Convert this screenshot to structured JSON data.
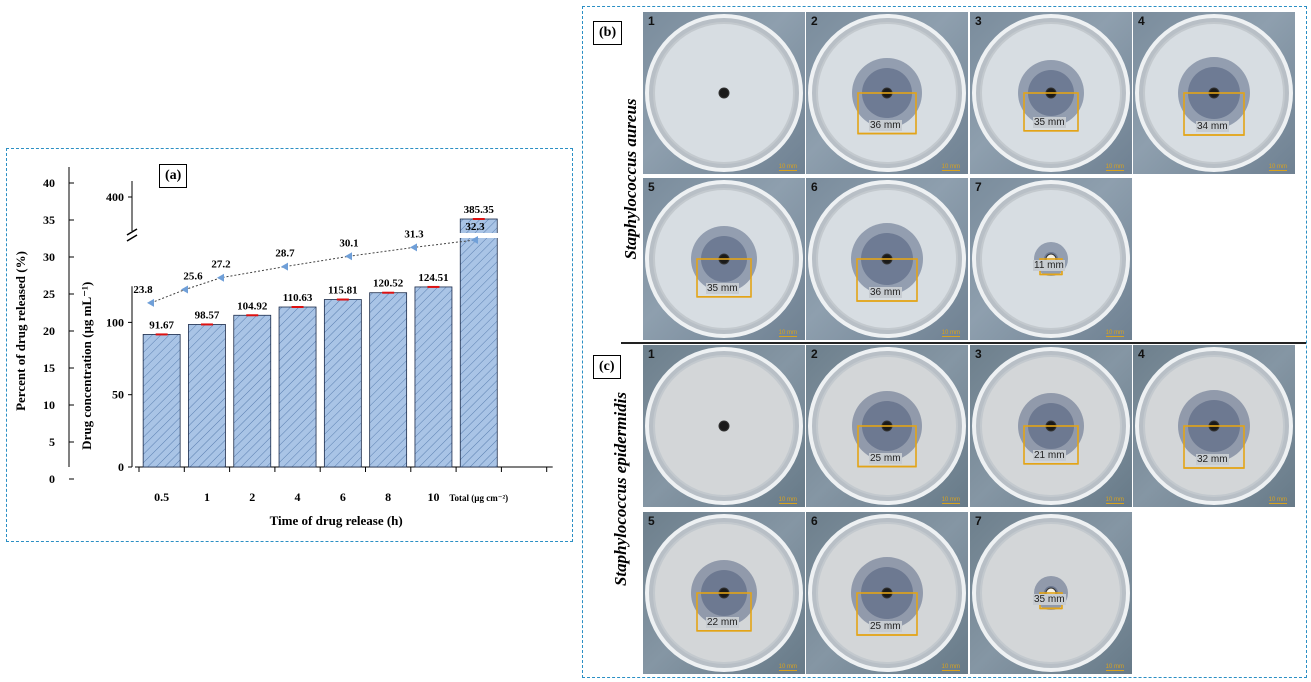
{
  "chart_data": {
    "type": "bar",
    "panel_label": "(a)",
    "categories": [
      "0.5",
      "1",
      "2",
      "4",
      "6",
      "8",
      "10",
      "Total (µg cm⁻²)"
    ],
    "bar_values": [
      91.67,
      98.57,
      104.92,
      110.63,
      115.81,
      120.52,
      124.51,
      385.35
    ],
    "bar_labels": [
      "91.67",
      "98.57",
      "104.92",
      "110.63",
      "115.81",
      "120.52",
      "124.51",
      "385.35"
    ],
    "percent_series": {
      "name": "Percent of drug released (%)",
      "x": [
        0.5,
        1,
        2,
        4,
        6,
        8,
        10
      ],
      "values": [
        23.8,
        25.6,
        27.2,
        28.7,
        30.1,
        31.3,
        32.3
      ],
      "labels": [
        "23.8",
        "25.6",
        "27.2",
        "28.7",
        "30.1",
        "31.3",
        "32.3"
      ]
    },
    "xlabel": "Time of drug release (h)",
    "ylabel_left": "Percent of drug released (%)",
    "ylabel_right": "Drug concentration (µg mL⁻¹)",
    "yticks_left": [
      "0",
      "5",
      "10",
      "15",
      "20",
      "25",
      "30",
      "35",
      "40"
    ],
    "yticks_conc_low": [
      "0",
      "50",
      "100"
    ],
    "yticks_conc_high": [
      "400"
    ],
    "ylim_conc_low": [
      0,
      130
    ],
    "axis_break": true,
    "bar_color": "#a9c4e6",
    "marker_color": "#6f9fd8"
  },
  "panel_b": {
    "label": "(b)",
    "species": "Staphylococcus aureus",
    "dishes": [
      {
        "num": "1",
        "zone": ""
      },
      {
        "num": "2",
        "zone": "36 mm"
      },
      {
        "num": "3",
        "zone": "35 mm"
      },
      {
        "num": "4",
        "zone": "34 mm"
      },
      {
        "num": "5",
        "zone": "35 mm"
      },
      {
        "num": "6",
        "zone": "36 mm"
      },
      {
        "num": "7",
        "zone": "11 mm"
      }
    ]
  },
  "panel_c": {
    "label": "(c)",
    "species": "Staphylococcus epidermidis",
    "dishes": [
      {
        "num": "1",
        "zone": ""
      },
      {
        "num": "2",
        "zone": "25 mm"
      },
      {
        "num": "3",
        "zone": "21 mm"
      },
      {
        "num": "4",
        "zone": "32 mm"
      },
      {
        "num": "5",
        "zone": "22 mm"
      },
      {
        "num": "6",
        "zone": "25 mm"
      },
      {
        "num": "7",
        "zone": "35 mm"
      }
    ]
  },
  "scale_bar": "10 mm",
  "colors": {
    "frame": "#2b8fc4",
    "measure": "#e3a417"
  }
}
